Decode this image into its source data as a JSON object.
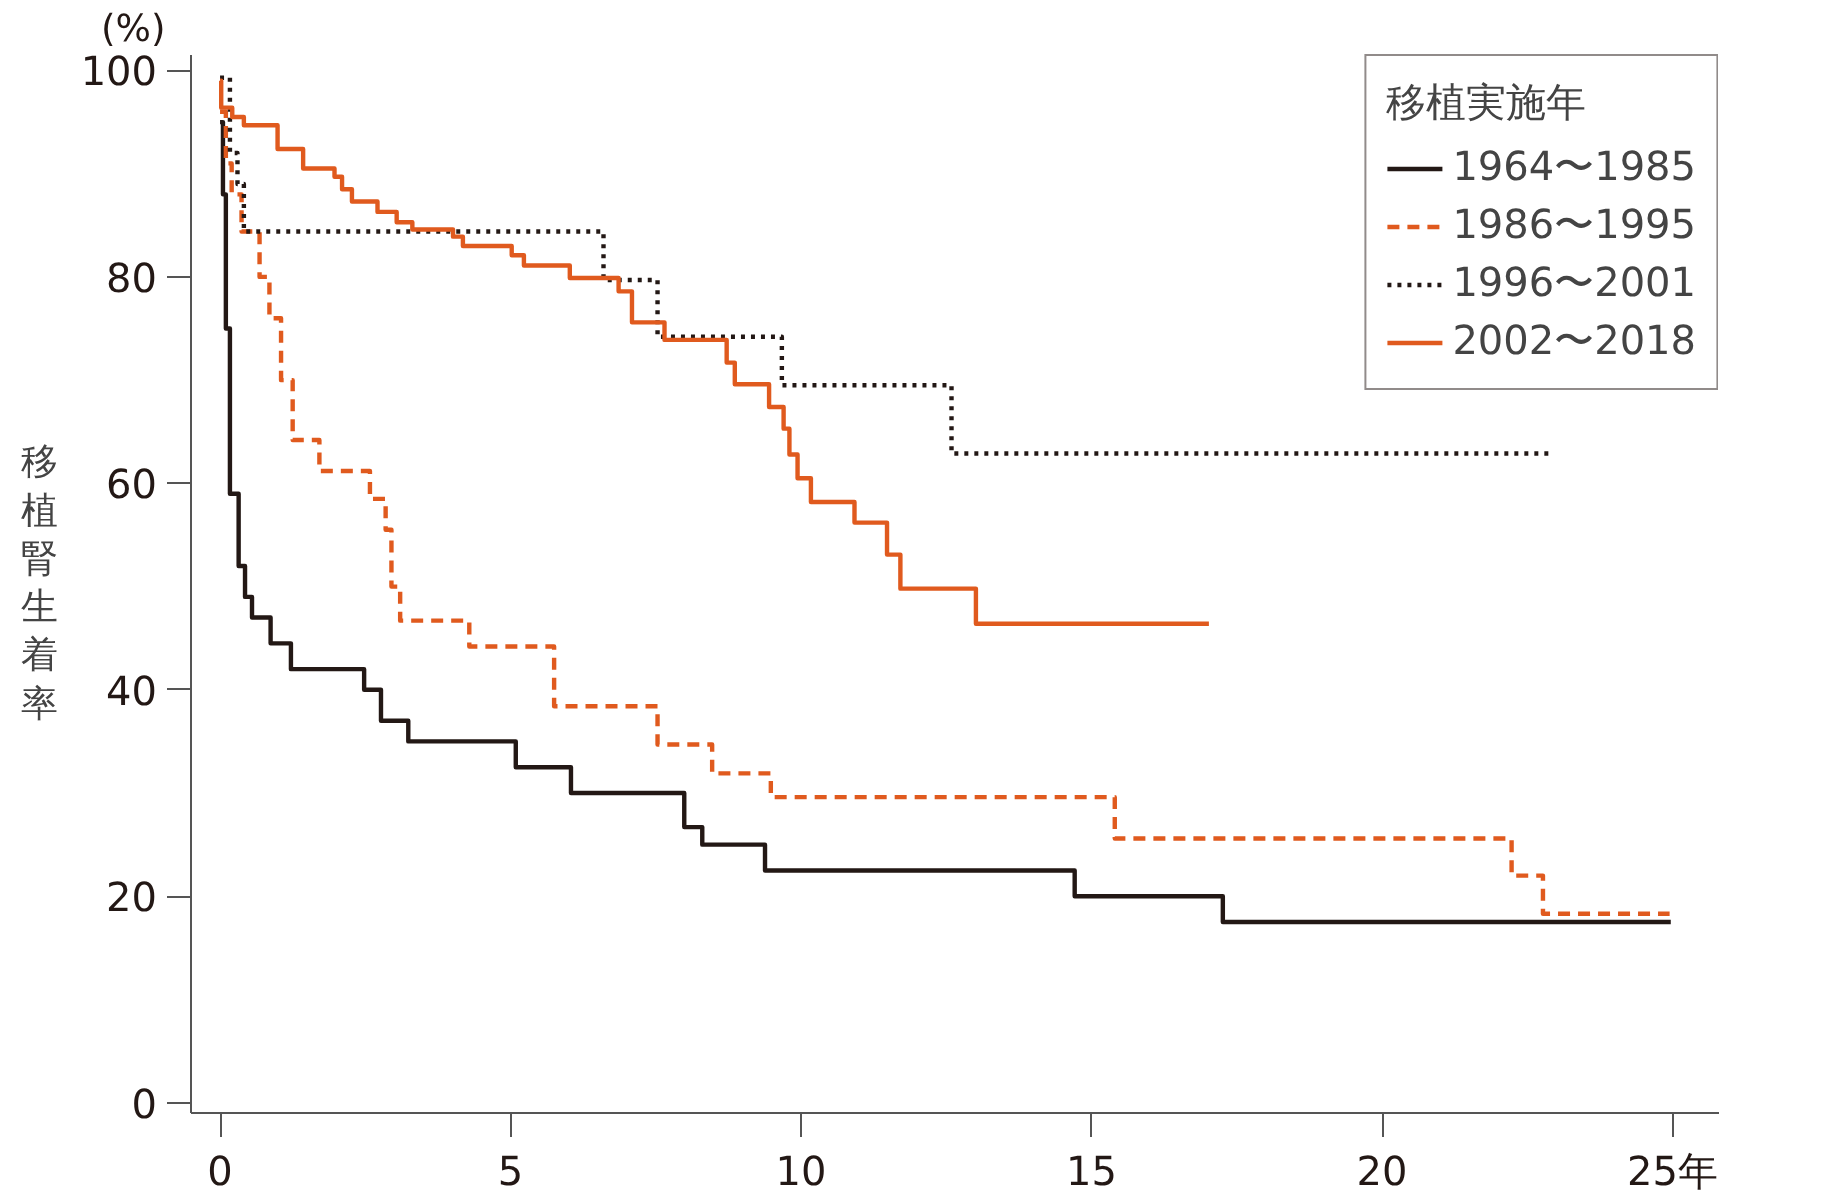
{
  "chart_data": {
    "type": "step",
    "ylabel": "移植腎生着率",
    "legend_title": "移植実施年",
    "legend": "top right",
    "grid": false,
    "annotations": [
      "(%)"
    ],
    "xlim": [
      -0.5,
      25.8
    ],
    "ylim": [
      -1,
      101.5
    ],
    "xticks": [
      0,
      5,
      10,
      15,
      20,
      {
        "value": 25,
        "label": "25年"
      }
    ],
    "yticks": [
      0,
      20,
      40,
      60,
      80,
      100
    ],
    "series": [
      {
        "name": "1964〜1985",
        "color": "#231815",
        "line_style": "solid",
        "x": [
          0,
          0.05,
          0.1,
          0.17,
          0.32,
          0.43,
          0.55,
          0.87,
          1.22,
          2.48,
          2.77,
          3.24,
          5.09,
          6.04,
          7.99,
          8.3,
          9.38,
          14.71,
          17.26,
          24.97
        ],
        "values": [
          95,
          88,
          75,
          59,
          52,
          49,
          47,
          44.5,
          42,
          40,
          37,
          35,
          32.5,
          30,
          26.7,
          25,
          22.5,
          20,
          17.5,
          17.5
        ]
      },
      {
        "name": "1986〜1995",
        "color": "#e05a1e",
        "line_style": "dashed",
        "x": [
          0,
          0.1,
          0.2,
          0.37,
          0.68,
          0.85,
          1.05,
          1.25,
          1.71,
          2.58,
          2.85,
          2.95,
          3.1,
          4.29,
          5.75,
          7.53,
          8.47,
          9.48,
          15.4,
          22.23,
          22.77,
          24.95
        ],
        "values": [
          96,
          91,
          88,
          84.4,
          80,
          76,
          70,
          64.2,
          61.2,
          58.5,
          55.5,
          50,
          46.7,
          44.2,
          38.4,
          34.7,
          31.9,
          29.6,
          25.6,
          22,
          18.3,
          18.3
        ]
      },
      {
        "name": "1996〜2001",
        "color": "#231815",
        "line_style": "dotted",
        "x": [
          0,
          0.17,
          0.3,
          0.41,
          6.6,
          7.53,
          9.67,
          12.59,
          22.9
        ],
        "values": [
          99.3,
          92,
          89,
          84.4,
          79.7,
          74.2,
          69.5,
          62.9,
          62.9
        ]
      },
      {
        "name": "2002〜2018",
        "color": "#e05a1e",
        "line_style": "solid",
        "x": [
          0,
          0.02,
          0.21,
          0.41,
          0.99,
          1.43,
          1.97,
          2.1,
          2.27,
          2.71,
          3.04,
          3.31,
          4.01,
          4.18,
          5.02,
          5.23,
          6.02,
          6.86,
          7.09,
          7.65,
          8.72,
          8.86,
          9.45,
          9.7,
          9.8,
          9.94,
          10.17,
          10.92,
          11.48,
          11.71,
          13.01,
          17.02
        ],
        "values": [
          99,
          96.4,
          95.5,
          94.7,
          92.4,
          90.5,
          89.7,
          88.5,
          87.3,
          86.3,
          85.3,
          84.6,
          83.9,
          83,
          82.1,
          81.1,
          79.9,
          78.6,
          75.6,
          73.9,
          71.7,
          69.6,
          67.4,
          65.3,
          62.8,
          60.5,
          58.2,
          56.2,
          53.1,
          49.8,
          46.4,
          46.4
        ]
      }
    ]
  }
}
